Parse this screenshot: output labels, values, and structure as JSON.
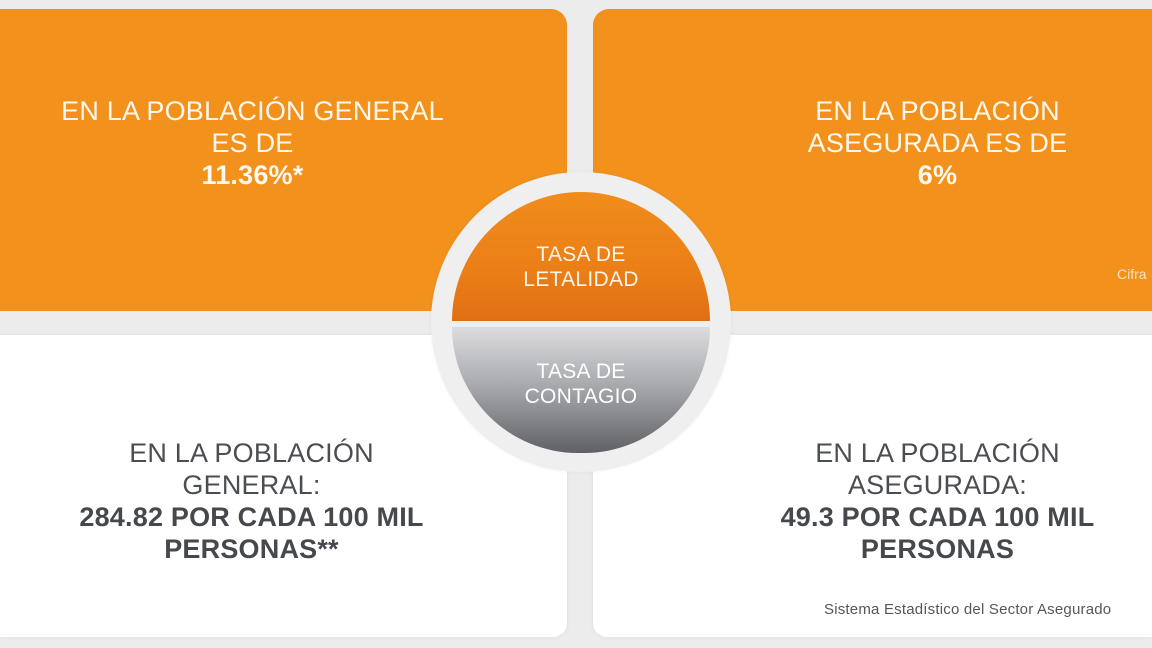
{
  "colors": {
    "background": "#ececec",
    "orange": "#f2921d",
    "orange_dark": "#e06f13",
    "white_card": "#ffffff",
    "dark_text": "#4a4d52",
    "gray_dark": "#5f6166"
  },
  "center": {
    "top_label": [
      "TASA DE",
      "LETALIDAD"
    ],
    "bottom_label": [
      "TASA DE",
      "CONTAGIO"
    ]
  },
  "letalidad": {
    "general": {
      "lines": [
        "EN LA POBLACIÓN GENERAL",
        "ES DE"
      ],
      "value": "11.36%*"
    },
    "asegurada": {
      "lines": [
        "EN LA POBLACIÓN",
        "ASEGURADA ES DE"
      ],
      "value": "6%",
      "note": "Cifra"
    }
  },
  "contagio": {
    "general": {
      "lines": [
        "EN LA POBLACIÓN",
        "GENERAL:"
      ],
      "value_lines": [
        "284.82 POR CADA 100 MIL",
        "PERSONAS**"
      ]
    },
    "asegurada": {
      "lines": [
        "EN LA POBLACIÓN",
        "ASEGURADA:"
      ],
      "value_lines": [
        "49.3 POR CADA 100 MIL",
        "PERSONAS"
      ],
      "source": "Sistema Estadístico del Sector Asegurado"
    }
  }
}
